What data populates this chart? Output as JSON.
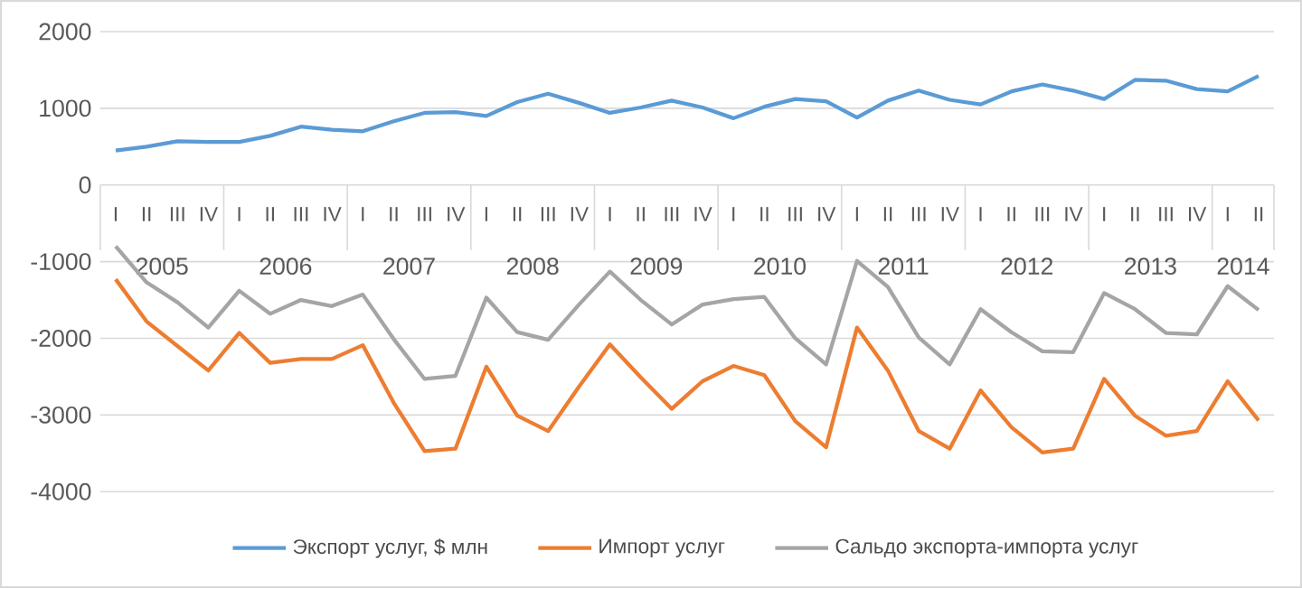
{
  "chart_data": {
    "type": "line",
    "categories": [
      "I",
      "II",
      "III",
      "IV",
      "I",
      "II",
      "III",
      "IV",
      "I",
      "II",
      "III",
      "IV",
      "I",
      "II",
      "III",
      "IV",
      "I",
      "II",
      "III",
      "IV",
      "I",
      "II",
      "III",
      "IV",
      "I",
      "II",
      "III",
      "IV",
      "I",
      "II",
      "III",
      "IV",
      "I",
      "II",
      "III",
      "IV",
      "I",
      "II"
    ],
    "annotations": [
      "2005",
      "2006",
      "2007",
      "2008",
      "2009",
      "2010",
      "2011",
      "2012",
      "2013",
      "2014"
    ],
    "series": [
      {
        "name": "Экспорт услуг, $ млн",
        "color": "#5b9bd5",
        "values": [
          450,
          500,
          570,
          560,
          560,
          640,
          760,
          720,
          700,
          830,
          940,
          950,
          900,
          1080,
          1190,
          1070,
          940,
          1010,
          1100,
          1010,
          870,
          1020,
          1120,
          1090,
          880,
          1100,
          1230,
          1110,
          1050,
          1220,
          1310,
          1230,
          1120,
          1370,
          1360,
          1250,
          1220,
          1420
        ]
      },
      {
        "name": "Импорт услуг",
        "color": "#ed7d31",
        "values": [
          -1230,
          -1780,
          -2100,
          -2420,
          -1930,
          -2320,
          -2270,
          -2270,
          -2090,
          -2840,
          -3470,
          -3440,
          -2370,
          -3010,
          -3210,
          -2630,
          -2080,
          -2510,
          -2920,
          -2560,
          -2360,
          -2480,
          -3080,
          -3420,
          -1860,
          -2420,
          -3210,
          -3440,
          -2680,
          -3160,
          -3490,
          -3440,
          -2530,
          -3010,
          -3270,
          -3210,
          -2560,
          -3070
        ]
      },
      {
        "name": "Сальдо экспорта-импорта услуг",
        "color": "#a5a5a5",
        "values": [
          -800,
          -1270,
          -1530,
          -1860,
          -1380,
          -1680,
          -1500,
          -1580,
          -1430,
          -2010,
          -2530,
          -2490,
          -1470,
          -1920,
          -2020,
          -1560,
          -1130,
          -1500,
          -1820,
          -1560,
          -1490,
          -1460,
          -2000,
          -2340,
          -990,
          -1330,
          -1990,
          -2340,
          -1620,
          -1920,
          -2170,
          -2180,
          -1410,
          -1620,
          -1930,
          -1950,
          -1320,
          -1630
        ]
      }
    ],
    "ylim": [
      -4000,
      2000
    ],
    "yticks": [
      -4000,
      -3000,
      -2000,
      -1000,
      0,
      1000,
      2000
    ],
    "grid": "y",
    "legend": "bottom",
    "marker": "none",
    "line_style": "solid"
  }
}
